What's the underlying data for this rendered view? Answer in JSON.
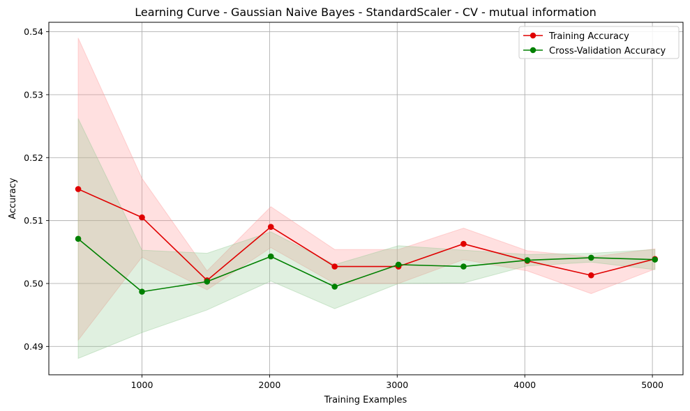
{
  "chart_data": {
    "type": "line",
    "title": "Learning Curve - Gaussian Naive Bayes - StandardScaler - CV - mutual information",
    "xlabel": "Training Examples",
    "ylabel": "Accuracy",
    "xlim": [
      270,
      5240
    ],
    "ylim": [
      0.4855,
      0.5415
    ],
    "xticks": [
      1000,
      2000,
      3000,
      4000,
      5000
    ],
    "xtick_labels": [
      "1000",
      "2000",
      "3000",
      "4000",
      "5000"
    ],
    "yticks": [
      0.49,
      0.5,
      0.51,
      0.52,
      0.53,
      0.54
    ],
    "ytick_labels": [
      "0.49",
      "0.50",
      "0.51",
      "0.52",
      "0.53",
      "0.54"
    ],
    "grid": true,
    "legend_position": "top-right",
    "x": [
      500,
      1000,
      1510,
      2010,
      2510,
      3010,
      3520,
      4020,
      4520,
      5020
    ],
    "series": [
      {
        "name": "Training Accuracy",
        "color": "#e00000",
        "band_color": "#ff9999",
        "values": [
          0.515,
          0.5105,
          0.5005,
          0.509,
          0.5027,
          0.5027,
          0.5063,
          0.5036,
          0.5013,
          0.5039
        ],
        "lower": [
          0.491,
          0.5042,
          0.499,
          0.5057,
          0.5,
          0.5,
          0.5038,
          0.502,
          0.4984,
          0.5023
        ],
        "upper": [
          0.539,
          0.5167,
          0.502,
          0.5122,
          0.5054,
          0.5054,
          0.5088,
          0.5052,
          0.5042,
          0.5055
        ]
      },
      {
        "name": "Cross-Validation Accuracy",
        "color": "#008000",
        "band_color": "#90c890",
        "values": [
          0.5071,
          0.4987,
          0.5003,
          0.5043,
          0.4995,
          0.503,
          0.5027,
          0.5037,
          0.5041,
          0.5038
        ],
        "lower": [
          0.4881,
          0.4922,
          0.4958,
          0.5004,
          0.496,
          0.5,
          0.5001,
          0.5028,
          0.5034,
          0.5022
        ],
        "upper": [
          0.5262,
          0.5053,
          0.5048,
          0.5082,
          0.503,
          0.506,
          0.5053,
          0.5046,
          0.5048,
          0.5054
        ]
      }
    ]
  }
}
